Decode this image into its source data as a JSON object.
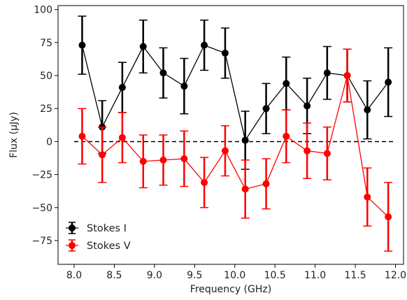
{
  "chart_data": {
    "type": "scatter",
    "title": "",
    "xlabel": "Frequency (GHz)",
    "ylabel": "Flux (μJy)",
    "xlim": [
      7.8,
      12.1
    ],
    "ylim": [
      -93,
      103
    ],
    "xticks": [
      8.0,
      8.5,
      9.0,
      9.5,
      10.0,
      10.5,
      11.0,
      11.5,
      12.0
    ],
    "xtick_labels": [
      "8.0",
      "8.5",
      "9.0",
      "9.5",
      "10.0",
      "10.5",
      "11.0",
      "11.5",
      "12.0"
    ],
    "yticks": [
      -75,
      -50,
      -25,
      0,
      25,
      50,
      75,
      100
    ],
    "ytick_labels": [
      "−75",
      "−50",
      "−25",
      "0",
      "25",
      "50",
      "75",
      "100"
    ],
    "reference_line": {
      "y": 0,
      "style": "dashed",
      "color": "#000000"
    },
    "legend_position": "lower-left",
    "grid": false,
    "series": [
      {
        "name": "Stokes I",
        "color": "#000000",
        "points": [
          {
            "x": 8.1,
            "y": 73,
            "err": 22
          },
          {
            "x": 8.35,
            "y": 11,
            "err": 20
          },
          {
            "x": 8.6,
            "y": 41,
            "err": 19
          },
          {
            "x": 8.86,
            "y": 72,
            "err": 20
          },
          {
            "x": 9.11,
            "y": 52,
            "err": 19
          },
          {
            "x": 9.37,
            "y": 42,
            "err": 21
          },
          {
            "x": 9.62,
            "y": 73,
            "err": 19
          },
          {
            "x": 9.88,
            "y": 67,
            "err": 19
          },
          {
            "x": 10.13,
            "y": 1,
            "err": 22
          },
          {
            "x": 10.39,
            "y": 25,
            "err": 19
          },
          {
            "x": 10.64,
            "y": 44,
            "err": 20
          },
          {
            "x": 10.9,
            "y": 27,
            "err": 21
          },
          {
            "x": 11.15,
            "y": 52,
            "err": 20
          },
          {
            "x": 11.4,
            "y": 50,
            "err": 20
          },
          {
            "x": 11.65,
            "y": 24,
            "err": 22
          },
          {
            "x": 11.91,
            "y": 45,
            "err": 26
          }
        ]
      },
      {
        "name": "Stokes V",
        "color": "#ff0000",
        "points": [
          {
            "x": 8.1,
            "y": 4,
            "err": 21
          },
          {
            "x": 8.35,
            "y": -10,
            "err": 21
          },
          {
            "x": 8.6,
            "y": 3,
            "err": 19
          },
          {
            "x": 8.86,
            "y": -15,
            "err": 20
          },
          {
            "x": 9.11,
            "y": -14,
            "err": 19
          },
          {
            "x": 9.37,
            "y": -13,
            "err": 21
          },
          {
            "x": 9.62,
            "y": -31,
            "err": 19
          },
          {
            "x": 9.88,
            "y": -7,
            "err": 19
          },
          {
            "x": 10.13,
            "y": -36,
            "err": 22
          },
          {
            "x": 10.39,
            "y": -32,
            "err": 19
          },
          {
            "x": 10.64,
            "y": 4,
            "err": 20
          },
          {
            "x": 10.9,
            "y": -7,
            "err": 21
          },
          {
            "x": 11.15,
            "y": -9,
            "err": 20
          },
          {
            "x": 11.4,
            "y": 50,
            "err": 20
          },
          {
            "x": 11.65,
            "y": -42,
            "err": 22
          },
          {
            "x": 11.91,
            "y": -57,
            "err": 26
          }
        ]
      }
    ]
  }
}
